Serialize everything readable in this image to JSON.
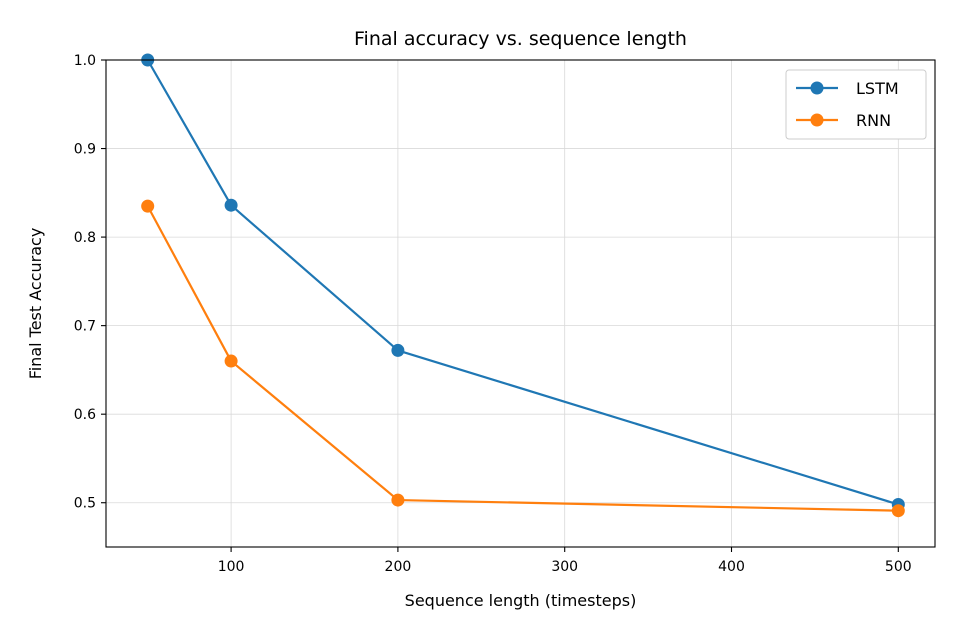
{
  "chart_data": {
    "type": "line",
    "title": "Final accuracy vs. sequence length",
    "xlabel": "Sequence length (timesteps)",
    "ylabel": "Final Test Accuracy",
    "xlim": [
      25,
      522
    ],
    "ylim": [
      0.45,
      1.0
    ],
    "xticks": [
      100,
      200,
      300,
      400,
      500
    ],
    "yticks": [
      0.5,
      0.6,
      0.7,
      0.8,
      0.9,
      1.0
    ],
    "grid": true,
    "legend_position": "top-right",
    "x": [
      50,
      100,
      200,
      500
    ],
    "series": [
      {
        "name": "LSTM",
        "color": "#1f77b4",
        "values": [
          1.0,
          0.836,
          0.672,
          0.498
        ]
      },
      {
        "name": "RNN",
        "color": "#ff7f0e",
        "values": [
          0.835,
          0.66,
          0.503,
          0.491
        ]
      }
    ]
  }
}
